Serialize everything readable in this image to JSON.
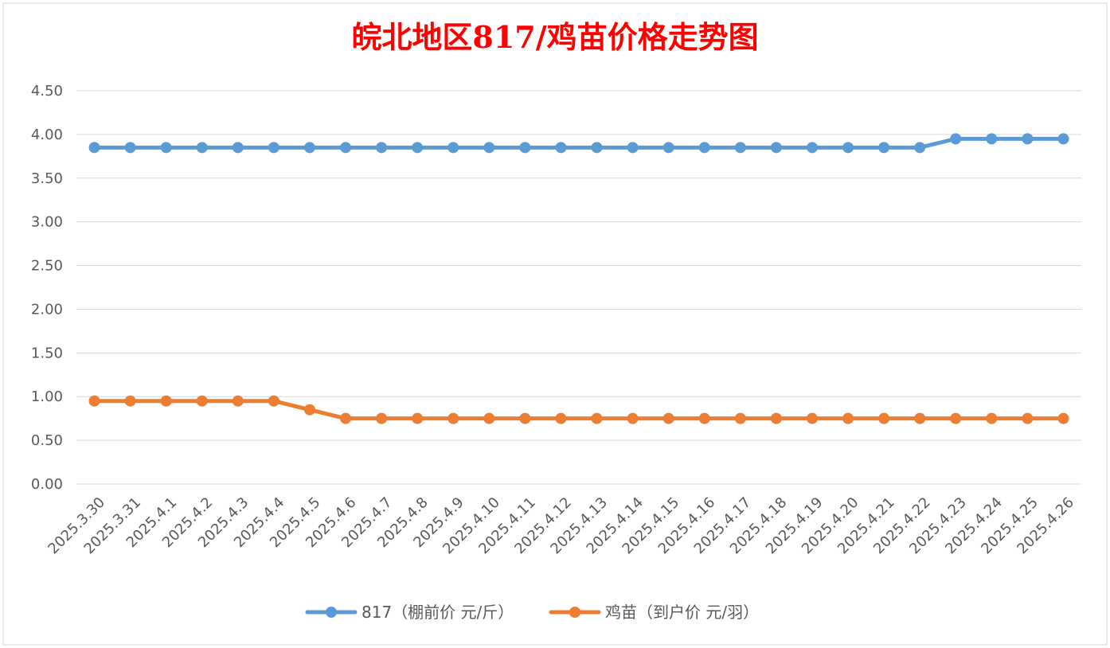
{
  "chart_data": {
    "type": "line",
    "title": "皖北地区817/鸡苗价格走势图",
    "categories": [
      "2025.3.30",
      "2025.3.31",
      "2025.4.1",
      "2025.4.2",
      "2025.4.3",
      "2025.4.4",
      "2025.4.5",
      "2025.4.6",
      "2025.4.7",
      "2025.4.8",
      "2025.4.9",
      "2025.4.10",
      "2025.4.11",
      "2025.4.12",
      "2025.4.13",
      "2025.4.14",
      "2025.4.15",
      "2025.4.16",
      "2025.4.17",
      "2025.4.18",
      "2025.4.19",
      "2025.4.20",
      "2025.4.21",
      "2025.4.22",
      "2025.4.23",
      "2025.4.24",
      "2025.4.25",
      "2025.4.26"
    ],
    "series": [
      {
        "name": "817（棚前价 元/斤）",
        "color": "#5b9bd5",
        "values": [
          3.85,
          3.85,
          3.85,
          3.85,
          3.85,
          3.85,
          3.85,
          3.85,
          3.85,
          3.85,
          3.85,
          3.85,
          3.85,
          3.85,
          3.85,
          3.85,
          3.85,
          3.85,
          3.85,
          3.85,
          3.85,
          3.85,
          3.85,
          3.85,
          3.95,
          3.95,
          3.95,
          3.95
        ]
      },
      {
        "name": "鸡苗（到户价 元/羽）",
        "color": "#ed7d31",
        "values": [
          0.95,
          0.95,
          0.95,
          0.95,
          0.95,
          0.95,
          0.85,
          0.75,
          0.75,
          0.75,
          0.75,
          0.75,
          0.75,
          0.75,
          0.75,
          0.75,
          0.75,
          0.75,
          0.75,
          0.75,
          0.75,
          0.75,
          0.75,
          0.75,
          0.75,
          0.75,
          0.75,
          0.75
        ]
      }
    ],
    "yticks": [
      "0.00",
      "0.50",
      "1.00",
      "1.50",
      "2.00",
      "2.50",
      "3.00",
      "3.50",
      "4.00",
      "4.50"
    ],
    "ylim": [
      0,
      4.5
    ],
    "xlabel": "",
    "ylabel": "",
    "grid": true,
    "legend": "bottom"
  }
}
